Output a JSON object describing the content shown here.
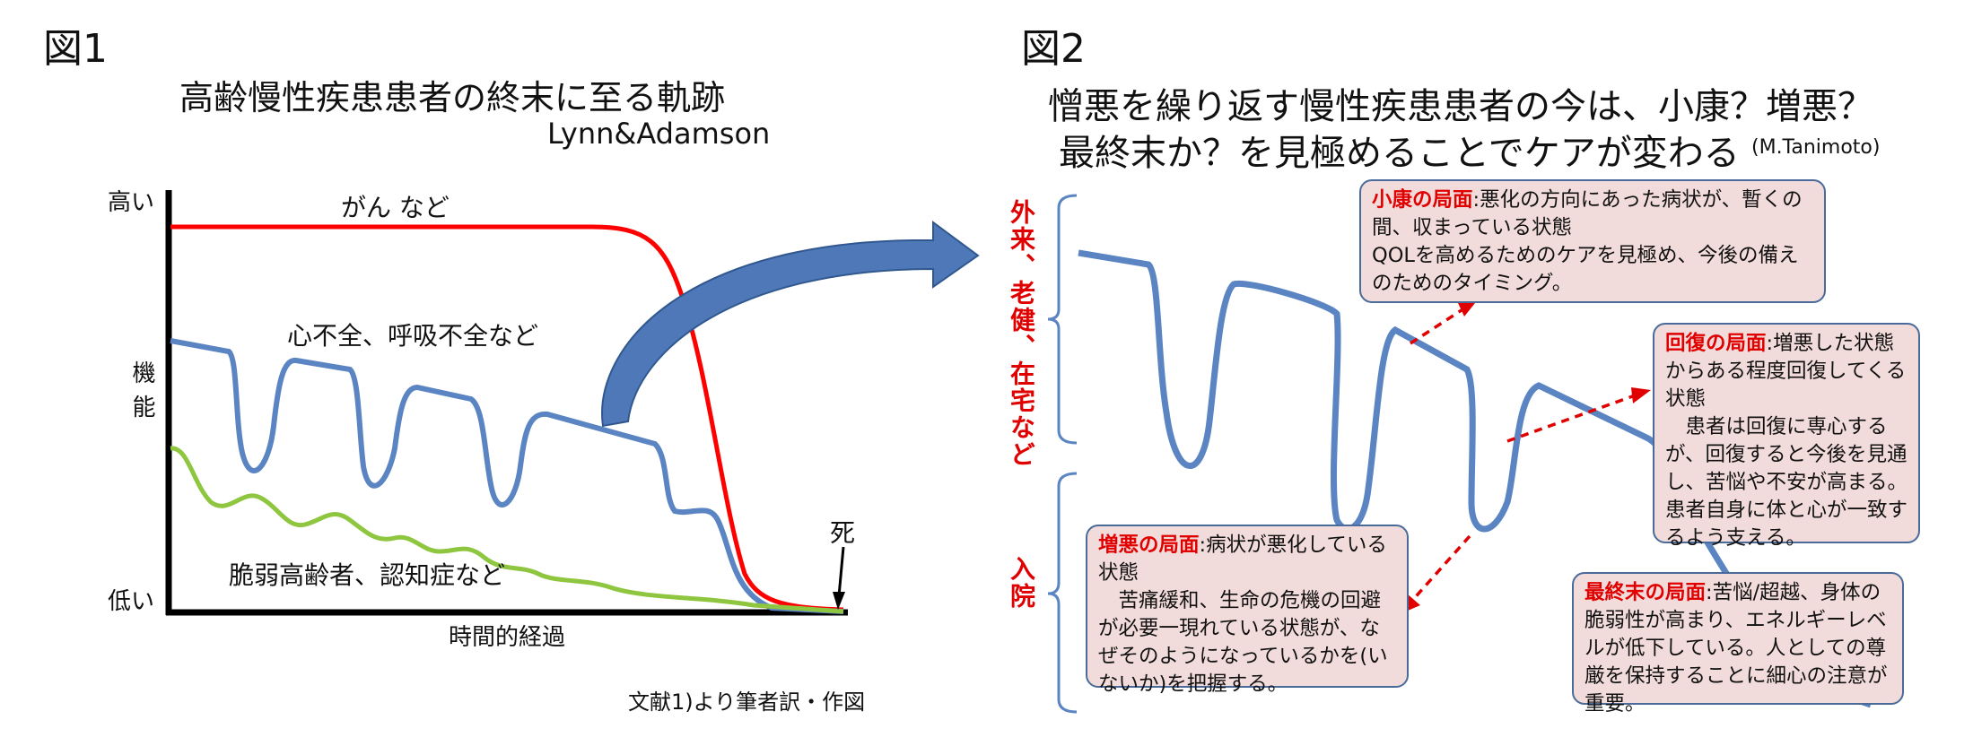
{
  "fig1": {
    "label": "図1",
    "title": "高齢慢性疾患患者の終末に至る軌跡",
    "author": "Lynn&Adamson",
    "y_high": "高い",
    "y_label": "機能",
    "y_low": "低い",
    "x_label": "時間的経過",
    "curve_cancer": "がん など",
    "curve_organ": "心不全、呼吸不全など",
    "curve_frail": "脆弱高齢者、認知症など",
    "death": "死",
    "source": "文献1)より筆者訳・作図"
  },
  "fig2": {
    "label": "図2",
    "title_line1": "憎悪を繰り返す慢性疾患患者の今は、小康？増悪？",
    "title_line2": "最終末か？を見極めることでケアが変わる",
    "title_credit": "(M.Tanimoto)",
    "side_upper": "外来、老健、在宅など",
    "side_lower": "入院",
    "box_remission": {
      "head": "小康の局面",
      "body": ":悪化の方向にあった病状が、暫くの間、収まっている状態",
      "body2": "QOLを高めるためのケアを見極め、今後の備えのためのタイミング。"
    },
    "box_recovery": {
      "head": "回復の局面",
      "body": ":増悪した状態からある程度回復してくる状態",
      "body2": "患者は回復に専心するが、回復すると今後を見通し、苦悩や不安が高まる。患者自身に体と心が一致するよう支える。"
    },
    "box_exacerbation": {
      "head": "増悪の局面",
      "body": ":病状が悪化している状態",
      "body2": "苦痛緩和、生命の危機の回避が必要一現れている状態が、なぜそのようになっているかを(いないか)を把握する。"
    },
    "box_terminal": {
      "head": "最終末の局面",
      "body": ":苦悩/超越、身体の脆弱性が高まり、エネルギーレベルが低下している。人としての尊厳を保持することに細心の注意が重要。"
    }
  },
  "colors": {
    "cancer": "#ff0000",
    "organ": "#5b85c2",
    "frail": "#8ec63f",
    "box_bg": "#f2dcdb",
    "box_border": "#4a6b9a",
    "accent_red": "#e00000"
  }
}
